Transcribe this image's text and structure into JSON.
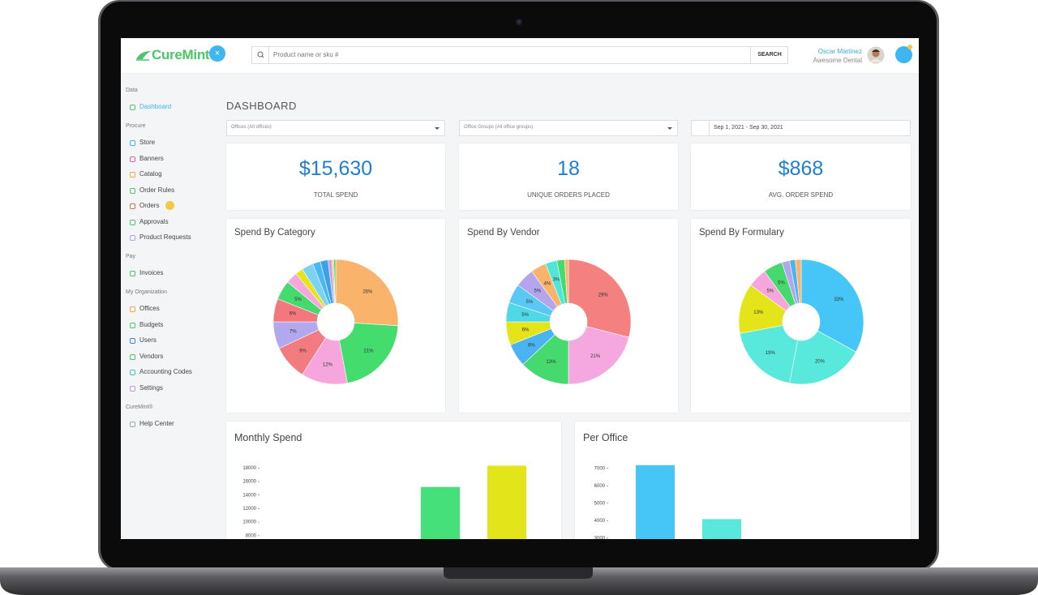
{
  "header": {
    "logo": "CureMint",
    "search_placeholder": "Product name or sku #",
    "search_button": "SEARCH",
    "user_name": "Oscar Martinez",
    "user_company": "Awesome Dental"
  },
  "sidebar": {
    "sections": [
      {
        "title": "Data",
        "items": [
          "Dashboard"
        ]
      },
      {
        "title": "Procure",
        "items": [
          "Store",
          "Banners",
          "Catalog",
          "Order Rules",
          "Orders",
          "Approvals",
          "Product Requests"
        ]
      },
      {
        "title": "Pay",
        "items": [
          "Invoices"
        ]
      },
      {
        "title": "My Organization",
        "items": [
          "Offices",
          "Budgets",
          "Users",
          "Vendors",
          "Accounting Codes",
          "Settings"
        ]
      },
      {
        "title": "CureMint®",
        "items": [
          "Help Center"
        ]
      }
    ]
  },
  "page_title": "DASHBOARD",
  "filters": [
    "Offices (All offices)",
    "Office Groups (All office groups)",
    "Sep 1, 2021 - Sep 30, 2021"
  ],
  "stats": [
    {
      "value": "$15,630",
      "label": "TOTAL SPEND"
    },
    {
      "value": "18",
      "label": "UNIQUE ORDERS PLACED"
    },
    {
      "value": "$868",
      "label": "AVG. ORDER SPEND"
    }
  ],
  "chart_data": [
    {
      "type": "pie",
      "title": "Spend By Category",
      "values": [
        26,
        21,
        12,
        9,
        7,
        6,
        5,
        3,
        2,
        3,
        2,
        2,
        1,
        0.5,
        0.5
      ],
      "value_labels": [
        "26%",
        "21%",
        "12%",
        "9%",
        "7%",
        "6%",
        "5%",
        null,
        null,
        null,
        null,
        null,
        null,
        null,
        null
      ],
      "colors": [
        "#f9b36b",
        "#45dc6e",
        "#f6a6dc",
        "#f27b80",
        "#b2a8ee",
        "#f2787e",
        "#45d96e",
        "#f5a8de",
        "#e4e41a",
        "#7ad3f5",
        "#4ab8f5",
        "#3fa0e8",
        "#c9a0f0",
        "#f7c86b",
        "#45d96e"
      ]
    },
    {
      "type": "pie",
      "title": "Spend By Vendor",
      "values": [
        29,
        21,
        13,
        6,
        6,
        5,
        5,
        5,
        4,
        3,
        2,
        1
      ],
      "value_labels": [
        "29%",
        "21%",
        "13%",
        "6%",
        "6%",
        "5%",
        "5%",
        "5%",
        "4%",
        "3%",
        null,
        null
      ],
      "colors": [
        "#f48080",
        "#f5a8df",
        "#45d96e",
        "#4ab4f0",
        "#e4e41a",
        "#4fd8e8",
        "#5ac8f5",
        "#b3a6ee",
        "#f9b36b",
        "#4ee6db",
        "#45d96e",
        "#f9b36b"
      ]
    },
    {
      "type": "pie",
      "title": "Spend By Formulary",
      "values": [
        33,
        20,
        19,
        13,
        5,
        5,
        2,
        1.5,
        1.5
      ],
      "value_labels": [
        "33%",
        "20%",
        "19%",
        "13%",
        "5%",
        "5%",
        null,
        null,
        null
      ],
      "colors": [
        "#45c6f7",
        "#59e8dc",
        "#59e8dc",
        "#e4e41a",
        "#f6a6dc",
        "#45d96e",
        "#b3a6ee",
        "#4ab4f0",
        "#f9b36b"
      ]
    },
    {
      "type": "bar",
      "title": "Monthly Spend",
      "values": [
        15200,
        18350
      ],
      "colors": [
        "#45e07a",
        "#e4e41a"
      ],
      "ylim": [
        7500,
        19000
      ],
      "yticks": [
        8000,
        10000,
        12000,
        14000,
        16000,
        18000
      ]
    },
    {
      "type": "bar",
      "title": "Per Office",
      "values": [
        7180,
        4090
      ],
      "colors": [
        "#45c6f7",
        "#59e8dc"
      ],
      "ylim": [
        2900,
        7500
      ],
      "yticks": [
        3000,
        4000,
        5000,
        6000,
        7000
      ]
    }
  ]
}
